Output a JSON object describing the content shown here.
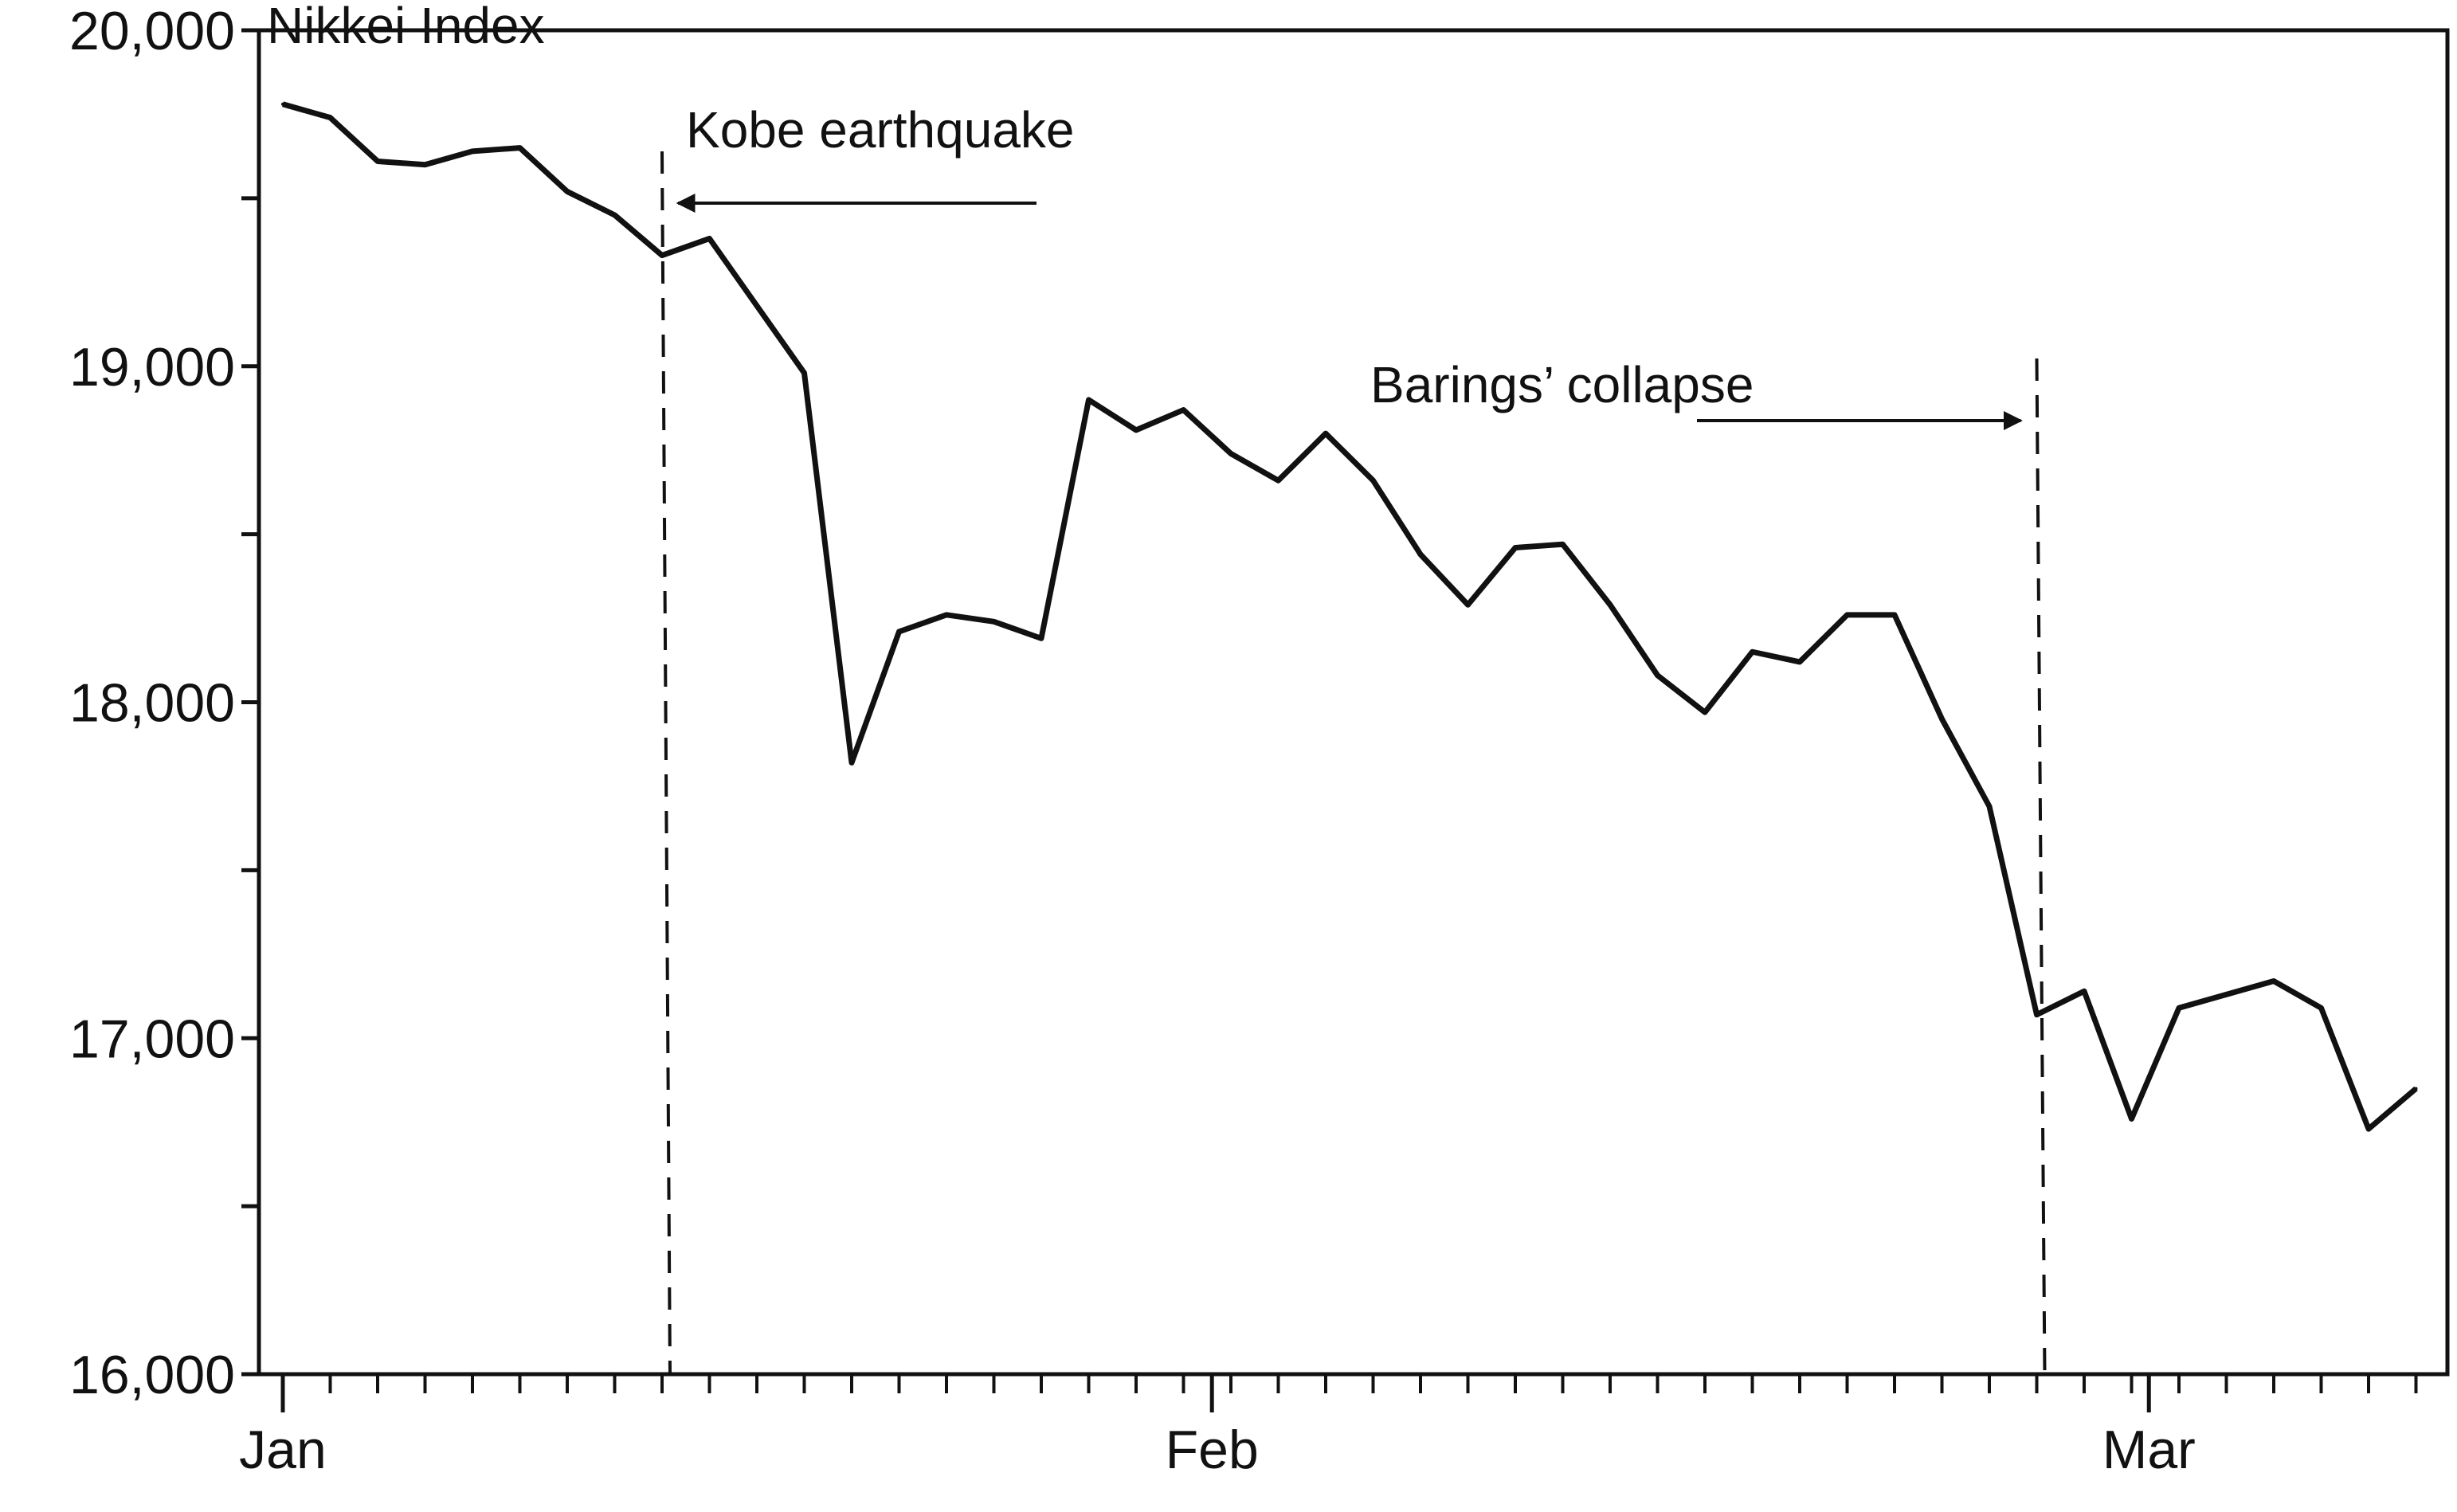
{
  "chart_data": {
    "type": "line",
    "title": "",
    "ylabel": "Nikkei Index",
    "xlabel": "",
    "x_tick_labels": [
      "Jan",
      "Feb",
      "Mar"
    ],
    "y_ticks": [
      16000,
      17000,
      18000,
      19000,
      20000
    ],
    "y_tick_labels": [
      "16,000",
      "17,000",
      "18,000",
      "19,000",
      "20,000"
    ],
    "ylim": [
      16000,
      20000
    ],
    "grid": false,
    "line_color": "#111111",
    "series": [
      {
        "values": [
          19780,
          19740,
          19610,
          19600,
          19640,
          19650,
          19520,
          19450,
          19330,
          19380,
          19180,
          18980,
          17820,
          18210,
          18260,
          18240,
          18190,
          18900,
          18810,
          18870,
          18740,
          18660,
          18800,
          18660,
          18440,
          18290,
          18460,
          18470,
          18290,
          18080,
          17970,
          18150,
          18120,
          18260,
          18260,
          17950,
          17690,
          17070,
          17140,
          16760,
          17090,
          17130,
          17170,
          17090,
          16730,
          16850
        ]
      }
    ],
    "annotations": [
      {
        "label": "Kobe earthquake",
        "x_index": 8,
        "arrow": "left"
      },
      {
        "label": "Barings’ collapse",
        "x_index": 37,
        "arrow": "right"
      }
    ]
  }
}
